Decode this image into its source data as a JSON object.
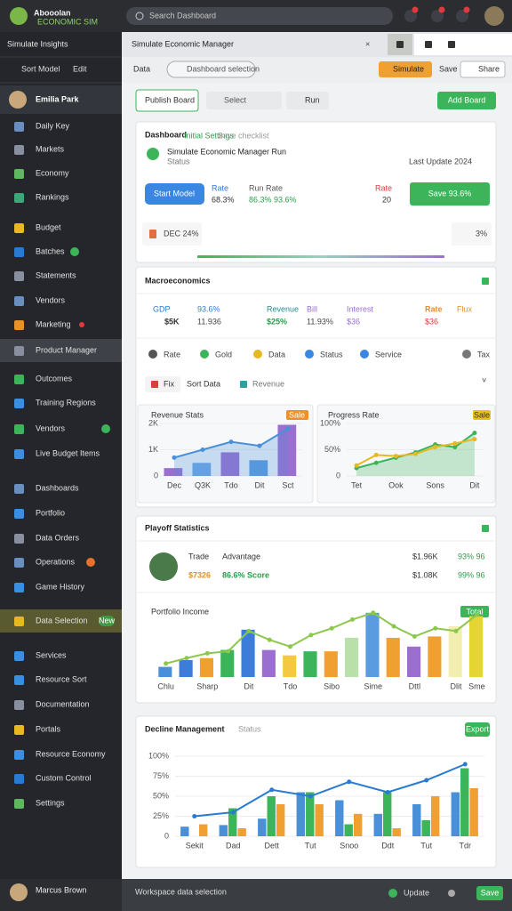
{
  "topbar": {
    "logo": "Abooolan",
    "logo_sub": "ECONOMIC SIM",
    "search": "Search Dashboard"
  },
  "sidebar": {
    "title": "Simulate Insights",
    "sort": "Sort Model",
    "edit": "Edit",
    "user": "Emilia Park",
    "items": [
      "Daily Key",
      "Markets",
      "Economy",
      "Rankings",
      "Budget",
      "Batches",
      "Statements",
      "Vendors",
      "Marketing",
      "Product Manager",
      "Outcomes",
      "Training Regions",
      "Vendors",
      "Live Budget Items",
      "Dashboards",
      "Portfolio",
      "Data Orders",
      "Operations",
      "Game History",
      "Data Selection",
      "Services",
      "Resource Sort",
      "Documentation",
      "Portals",
      "Resource Economy",
      "Custom Control",
      "Settings"
    ],
    "new_badge": "New",
    "footer": "Marcus Brown"
  },
  "header": {
    "title": "Simulate Economic Manager",
    "tab": "Data",
    "selection": "Dashboard selection",
    "simulate": "Simulate",
    "save": "Save",
    "share": "Share"
  },
  "toolbar": {
    "tab": "Publish Board",
    "select": "Select",
    "run": "Run",
    "add": "Add Board"
  },
  "overview": {
    "title": "Dashboard",
    "subtitle": "Initial Settings",
    "sub2": "Save checklist",
    "model": "Simulate Economic Manager Run",
    "status": "Status",
    "updated": "Last Update 2024",
    "start": "Start Model",
    "stats": [
      "Rate",
      "68.3%",
      "Run Rate",
      "86.3% 93.6%",
      "Rate",
      "20"
    ],
    "save": "Save 93.6%",
    "output": "DEC 24%",
    "output_value": "3%"
  },
  "macro": {
    "title": "Macroeconomics",
    "stats": [
      "GDP",
      "93.6%",
      "$5K",
      "11.936",
      "Revenue",
      "Bill",
      "$25%",
      "11.93%",
      "Interest",
      "$36",
      "Rate",
      "Flux",
      "$36"
    ],
    "icons": [
      "Rate",
      "Gold",
      "Data",
      "Status",
      "Service",
      "Tax"
    ],
    "filter": [
      "Fix",
      "Sort Data",
      "Revenue"
    ],
    "charts": [
      {
        "type": "combo",
        "title": "Revenue Stats",
        "badge": "Sale",
        "categories": [
          "Dec",
          "Q3K",
          "Tdo",
          "Dit",
          "Sct"
        ],
        "ylim": [
          0,
          2000
        ],
        "yticks": [
          0,
          {
            "value": 1000,
            "label": "1K"
          },
          {
            "value": 2000,
            "label": "2K"
          }
        ],
        "series": [
          {
            "kind": "bar",
            "colors": [
              "#9b6fd0",
              "#6fa8e6",
              "#9b6fd0",
              "#5b9be0",
              "#9b6fd0"
            ],
            "values": [
              300,
              500,
              900,
              600,
              1950
            ]
          },
          {
            "kind": "line",
            "area": true,
            "color": "#4a90d9",
            "values": [
              700,
              1000,
              1300,
              1150,
              1800
            ]
          }
        ]
      },
      {
        "type": "combo",
        "title": "Progress Rate",
        "badge": "Sale",
        "categories": [
          "Tet",
          null,
          "Ook",
          null,
          "Sons",
          null,
          "Dit"
        ],
        "ylim": [
          0,
          100
        ],
        "yticks": [
          0,
          {
            "value": 50,
            "label": "50%"
          },
          {
            "value": 100,
            "label": "100%"
          }
        ],
        "series": [
          {
            "kind": "line",
            "area": true,
            "color": "#3cb55a",
            "values": [
              15,
              25,
              35,
              45,
              60,
              55,
              82
            ]
          },
          {
            "kind": "line",
            "color": "#e8b820",
            "values": [
              20,
              40,
              38,
              42,
              55,
              62,
              70
            ]
          }
        ]
      }
    ]
  },
  "playoff": {
    "title": "Playoff Statistics",
    "row": [
      "Trade",
      "Advantage",
      "$1.96K",
      "93% 96",
      "$7326",
      "86.6% Score",
      "$1.08K",
      "99% 96"
    ],
    "chart": {
      "type": "combo",
      "title": "Portfolio Income",
      "badge": "Total",
      "categories": [
        "Chlu",
        null,
        "Sharp",
        null,
        "Dit",
        null,
        "Tdo",
        null,
        "Sibo",
        null,
        "Sime",
        null,
        "Dttl",
        null,
        "Dlit",
        "Sme"
      ],
      "ylim": [
        0,
        100
      ],
      "series": [
        {
          "kind": "bar",
          "colors": [
            "#4a90d9",
            "#3b7dd8",
            "#f0a030",
            "#3cb55a",
            "#3b7dd8",
            "#9b6fd0",
            "#f5c842",
            "#3cb55a",
            "#f0a030",
            "#b8e0a8",
            "#5b9be0",
            "#f0a030",
            "#9b6fd0",
            "#f0a030",
            "#f2eeb0",
            "#e5d530"
          ],
          "values": [
            15,
            25,
            28,
            40,
            70,
            40,
            32,
            38,
            38,
            58,
            95,
            58,
            45,
            60,
            75,
            90
          ]
        },
        {
          "kind": "line",
          "color": "#8cc84b",
          "values": [
            20,
            28,
            35,
            38,
            68,
            55,
            45,
            62,
            72,
            85,
            95,
            75,
            60,
            72,
            68,
            92
          ]
        }
      ]
    }
  },
  "decline": {
    "title": "Decline Management",
    "status": "Status",
    "export": "Export",
    "chart": {
      "type": "combo",
      "categories": [
        "Sekit",
        "Dad",
        "Dett",
        "Tut",
        "Snoo",
        "Ddt",
        "Tut",
        "Tdr"
      ],
      "ylim": [
        0,
        100
      ],
      "yticks": [
        0,
        {
          "value": 25,
          "label": "25%"
        },
        {
          "value": 50,
          "label": "50%"
        },
        {
          "value": 75,
          "label": "75%"
        },
        {
          "value": 100,
          "label": "100%"
        }
      ],
      "series": [
        {
          "kind": "bar",
          "color": "#4a90d9",
          "values": [
            12,
            14,
            22,
            55,
            45,
            28,
            40,
            55
          ]
        },
        {
          "kind": "bar",
          "color": "#3cb55a",
          "values": [
            0,
            35,
            50,
            55,
            15,
            55,
            20,
            85
          ]
        },
        {
          "kind": "bar",
          "color": "#f0a030",
          "values": [
            15,
            10,
            40,
            40,
            28,
            10,
            50,
            60
          ]
        },
        {
          "kind": "line",
          "color": "#2a7ad0",
          "values": [
            25,
            30,
            58,
            50,
            68,
            55,
            70,
            90
          ]
        }
      ]
    }
  },
  "bottombar": {
    "text": "Workspace data selection",
    "update": "Update",
    "save": "Save"
  }
}
